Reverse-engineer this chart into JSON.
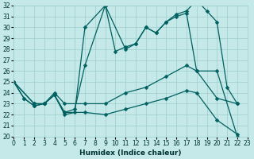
{
  "xlabel": "Humidex (Indice chaleur)",
  "background_color": "#c5e8e8",
  "grid_color": "#9ecece",
  "line_color": "#006060",
  "xlim": [
    0,
    23
  ],
  "ylim": [
    20,
    32
  ],
  "xticks": [
    0,
    1,
    2,
    3,
    4,
    5,
    6,
    7,
    8,
    9,
    10,
    11,
    12,
    13,
    14,
    15,
    16,
    17,
    18,
    19,
    20,
    21,
    22,
    23
  ],
  "yticks": [
    20,
    21,
    22,
    23,
    24,
    25,
    26,
    27,
    28,
    29,
    30,
    31,
    32
  ],
  "line1": {
    "x": [
      0,
      1,
      2,
      3,
      4,
      5,
      6,
      7,
      9,
      10,
      11,
      12,
      13,
      14,
      15,
      16,
      17,
      18,
      19,
      20,
      21,
      22
    ],
    "y": [
      25,
      23.5,
      22.8,
      23,
      23.8,
      22.0,
      22.2,
      30.0,
      32.0,
      27.8,
      28.2,
      28.5,
      30.0,
      29.5,
      30.5,
      31.2,
      31.5,
      32.5,
      31.5,
      30.5,
      24.5,
      23.0
    ]
  },
  "line2": {
    "x": [
      0,
      1,
      2,
      3,
      4,
      5,
      6,
      7,
      9,
      11,
      12,
      13,
      14,
      15,
      16,
      17,
      18,
      20,
      22
    ],
    "y": [
      25,
      23.5,
      22.8,
      23,
      23.8,
      22.2,
      22.5,
      26.5,
      32.0,
      28.0,
      28.5,
      30.0,
      29.5,
      30.5,
      31.0,
      31.3,
      26.0,
      23.5,
      23.0
    ]
  },
  "line3": {
    "x": [
      0,
      2,
      3,
      4,
      5,
      7,
      9,
      11,
      13,
      15,
      17,
      18,
      20,
      22
    ],
    "y": [
      25,
      23.0,
      23.0,
      24.0,
      23.0,
      23.0,
      23.0,
      24.0,
      24.5,
      25.5,
      26.5,
      26.0,
      26.0,
      20.0
    ]
  },
  "line4": {
    "x": [
      0,
      2,
      3,
      4,
      5,
      7,
      9,
      11,
      13,
      15,
      17,
      18,
      20,
      22
    ],
    "y": [
      25,
      23.0,
      23.0,
      23.8,
      22.2,
      22.2,
      22.0,
      22.5,
      23.0,
      23.5,
      24.2,
      24.0,
      21.5,
      20.2
    ]
  },
  "markersize": 2.5,
  "linewidth": 0.9,
  "tick_labelsize": 5.5,
  "xlabel_fontsize": 6.5
}
